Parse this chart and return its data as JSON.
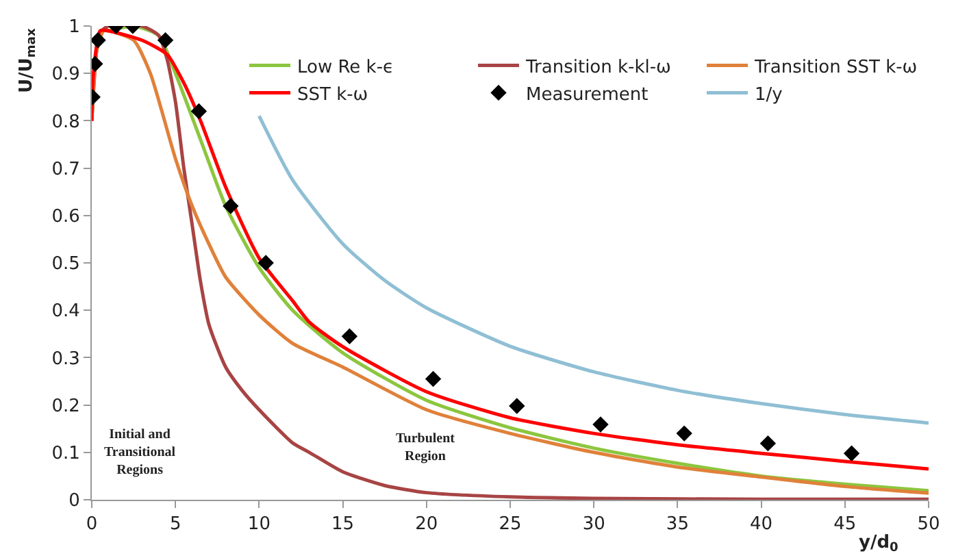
{
  "chart_data": {
    "type": "line",
    "xlabel": "y/d$_{0}$",
    "ylabel": "U/U$_{max}$",
    "xlim": [
      0,
      50
    ],
    "ylim": [
      0,
      1
    ],
    "xticks": [
      0,
      5,
      10,
      15,
      20,
      25,
      30,
      35,
      40,
      45,
      50
    ],
    "yticks": [
      0,
      0.1,
      0.2,
      0.3,
      0.4,
      0.5,
      0.6,
      0.7,
      0.8,
      0.9,
      1
    ],
    "legend": "top right",
    "marker": "none",
    "line_style": "solid",
    "series": [
      {
        "name": "Low Re k-ϵ",
        "color": "#8cc63f",
        "x": [
          0,
          0.3,
          0.7,
          1,
          2.5,
          4,
          5,
          6.5,
          8,
          10,
          12,
          15,
          20,
          25,
          30,
          35,
          40,
          45,
          50
        ],
        "values": [
          0.8,
          0.95,
          0.99,
          0.99,
          1.0,
          0.98,
          0.9,
          0.76,
          0.62,
          0.49,
          0.4,
          0.31,
          0.21,
          0.152,
          0.109,
          0.077,
          0.05,
          0.033,
          0.019
        ]
      },
      {
        "name": "Transition k-kl-ω",
        "color": "#a84444",
        "x": [
          0,
          0.3,
          0.6,
          1,
          3,
          4,
          4.5,
          5,
          5.5,
          6,
          6.5,
          7,
          8,
          9,
          10,
          12,
          13,
          15,
          17.5,
          20,
          25,
          30,
          40,
          50
        ],
        "values": [
          0.8,
          0.95,
          0.99,
          1.0,
          1.0,
          0.98,
          0.93,
          0.84,
          0.7,
          0.58,
          0.46,
          0.37,
          0.28,
          0.23,
          0.19,
          0.12,
          0.1,
          0.059,
          0.03,
          0.015,
          0.006,
          0.003,
          0.001,
          0.001
        ]
      },
      {
        "name": "Transition SST k-ω",
        "color": "#e0813a",
        "x": [
          0,
          0.3,
          0.7,
          1,
          2.5,
          3.5,
          5,
          6,
          7,
          8,
          10,
          12,
          15,
          20,
          25,
          30,
          35,
          40,
          45,
          50
        ],
        "values": [
          0.8,
          0.95,
          0.99,
          0.99,
          0.97,
          0.9,
          0.72,
          0.62,
          0.54,
          0.47,
          0.39,
          0.33,
          0.28,
          0.19,
          0.14,
          0.1,
          0.069,
          0.048,
          0.028,
          0.014
        ]
      },
      {
        "name": "SST k-ω",
        "color": "#ff0000",
        "x": [
          0,
          0.1,
          0.5,
          1,
          3,
          4.5,
          5.5,
          6.5,
          8,
          10,
          12,
          13,
          15,
          20,
          25,
          30,
          35,
          40,
          45,
          50
        ],
        "values": [
          0.8,
          0.9,
          0.99,
          0.99,
          0.97,
          0.94,
          0.88,
          0.8,
          0.66,
          0.51,
          0.42,
          0.375,
          0.323,
          0.228,
          0.173,
          0.14,
          0.116,
          0.098,
          0.081,
          0.065
        ]
      },
      {
        "name": "Measurement",
        "type": "scatter",
        "marker": "diamond",
        "color": "#000000",
        "x": [
          0.05,
          0.2,
          0.37,
          1.45,
          2.45,
          4.4,
          6.4,
          8.3,
          10.4,
          15.4,
          20.4,
          25.4,
          30.4,
          35.4,
          40.4,
          45.4
        ],
        "values": [
          0.85,
          0.92,
          0.97,
          1.0,
          1.0,
          0.97,
          0.82,
          0.62,
          0.5,
          0.345,
          0.255,
          0.198,
          0.159,
          0.14,
          0.119,
          0.098
        ]
      },
      {
        "name": "1/y",
        "color": "#8fbfd4",
        "x": [
          10,
          12,
          15,
          17.5,
          20,
          25,
          30,
          35,
          40,
          45,
          50
        ],
        "values": [
          0.81,
          0.675,
          0.54,
          0.463,
          0.405,
          0.324,
          0.27,
          0.231,
          0.203,
          0.18,
          0.162
        ]
      }
    ],
    "annotations": [
      "Initial and Transitional Regions",
      "Turbulent Region"
    ]
  }
}
